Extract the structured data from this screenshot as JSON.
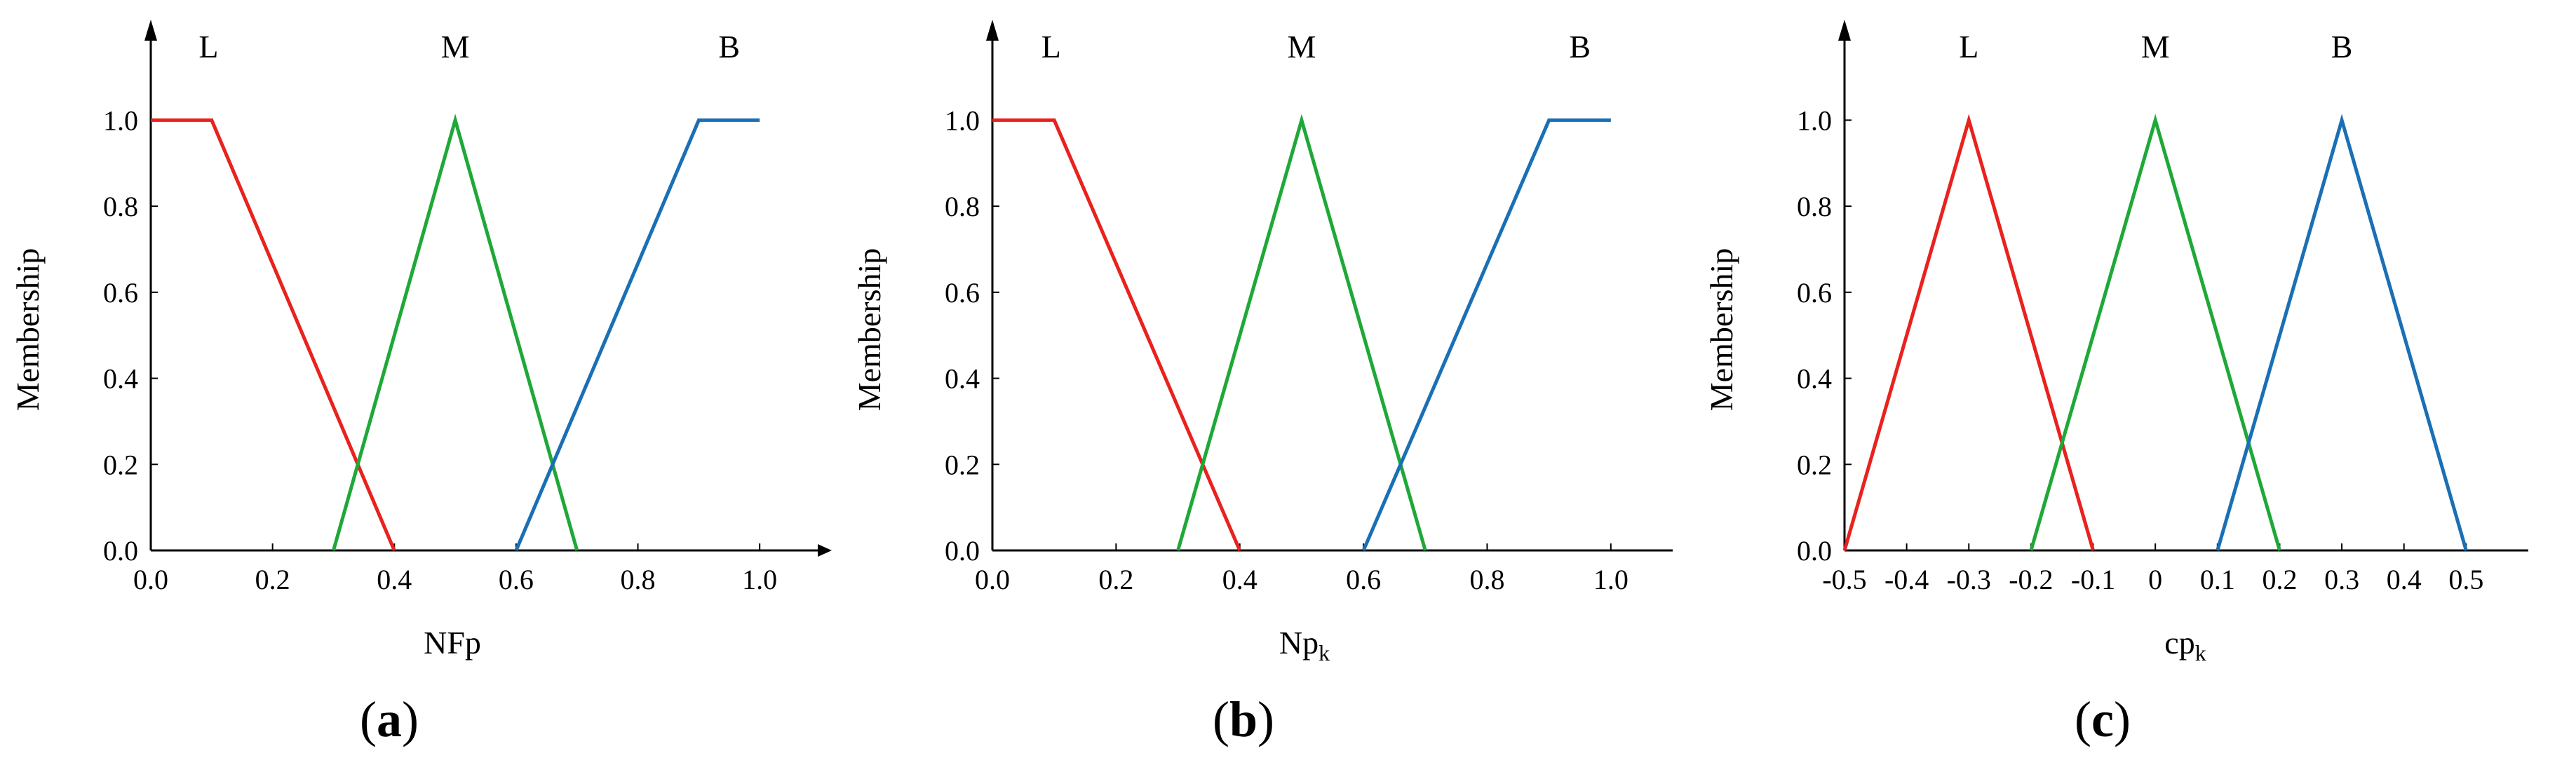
{
  "figure": {
    "panels": [
      {
        "label_open": "(",
        "label_letter": "a",
        "label_close": ")",
        "xlabel_main": "NFp",
        "xlabel_sub": "",
        "ylabel": "Membership",
        "sets": [
          "L",
          "M",
          "B"
        ]
      },
      {
        "label_open": "(",
        "label_letter": "b",
        "label_close": ")",
        "xlabel_main": "Np",
        "xlabel_sub": "k",
        "ylabel": "Membership",
        "sets": [
          "L",
          "M",
          "B"
        ]
      },
      {
        "label_open": "(",
        "label_letter": "c",
        "label_close": ")",
        "xlabel_main": "cp",
        "xlabel_sub": "k",
        "ylabel": "Membership",
        "sets": [
          "L",
          "M",
          "B"
        ]
      }
    ]
  },
  "chart_data": [
    {
      "type": "line",
      "xlabel": "NFp",
      "ylabel": "Membership",
      "xlim": [
        0,
        1.1
      ],
      "ylim": [
        0,
        1.1
      ],
      "x_ticks": [
        0.0,
        0.2,
        0.4,
        0.6,
        0.8,
        1.0
      ],
      "x_tick_labels": [
        "0.0",
        "0.2",
        "0.4",
        "0.6",
        "0.8",
        "1.0"
      ],
      "y_ticks": [
        0.0,
        0.2,
        0.4,
        0.6,
        0.8,
        1.0
      ],
      "y_tick_labels": [
        "0.0",
        "0.2",
        "0.4",
        "0.6",
        "0.8",
        "1.0"
      ],
      "grid": false,
      "series": [
        {
          "name": "L",
          "color": "#e8221e",
          "x": [
            0,
            0.1,
            0.4
          ],
          "y": [
            1,
            1,
            0
          ]
        },
        {
          "name": "M",
          "color": "#1fa838",
          "x": [
            0.3,
            0.5,
            0.7
          ],
          "y": [
            0,
            1,
            0
          ]
        },
        {
          "name": "B",
          "color": "#1a6fb5",
          "x": [
            0.6,
            0.9,
            1.0
          ],
          "y": [
            0,
            1,
            1
          ]
        }
      ]
    },
    {
      "type": "line",
      "xlabel": "Npk",
      "ylabel": "Membership",
      "xlim": [
        0,
        1.1
      ],
      "ylim": [
        0,
        1.1
      ],
      "x_ticks": [
        0.0,
        0.2,
        0.4,
        0.6,
        0.8,
        1.0
      ],
      "x_tick_labels": [
        "0.0",
        "0.2",
        "0.4",
        "0.6",
        "0.8",
        "1.0"
      ],
      "y_ticks": [
        0.0,
        0.2,
        0.4,
        0.6,
        0.8,
        1.0
      ],
      "y_tick_labels": [
        "0.0",
        "0.2",
        "0.4",
        "0.6",
        "0.8",
        "1.0"
      ],
      "grid": false,
      "series": [
        {
          "name": "L",
          "color": "#e8221e",
          "x": [
            0,
            0.1,
            0.4
          ],
          "y": [
            1,
            1,
            0
          ]
        },
        {
          "name": "M",
          "color": "#1fa838",
          "x": [
            0.3,
            0.5,
            0.7
          ],
          "y": [
            0,
            1,
            0
          ]
        },
        {
          "name": "B",
          "color": "#1a6fb5",
          "x": [
            0.6,
            0.9,
            1.0
          ],
          "y": [
            0,
            1,
            1
          ]
        }
      ]
    },
    {
      "type": "line",
      "xlabel": "cpk",
      "ylabel": "Membership",
      "xlim": [
        -0.5,
        0.6
      ],
      "ylim": [
        0,
        1.1
      ],
      "x_ticks": [
        -0.5,
        -0.4,
        -0.3,
        -0.2,
        -0.1,
        0,
        0.1,
        0.2,
        0.3,
        0.4,
        0.5
      ],
      "x_tick_labels": [
        "-0.5",
        "-0.4",
        "-0.3",
        "-0.2",
        "-0.1",
        "0",
        "0.1",
        "0.2",
        "0.3",
        "0.4",
        "0.5"
      ],
      "y_ticks": [
        0.0,
        0.2,
        0.4,
        0.6,
        0.8,
        1.0
      ],
      "y_tick_labels": [
        "0.0",
        "0.2",
        "0.4",
        "0.6",
        "0.8",
        "1.0"
      ],
      "grid": false,
      "series": [
        {
          "name": "L",
          "color": "#e8221e",
          "x": [
            -0.5,
            -0.3,
            -0.1
          ],
          "y": [
            0,
            1,
            0
          ]
        },
        {
          "name": "M",
          "color": "#1fa838",
          "x": [
            -0.2,
            0,
            0.2
          ],
          "y": [
            0,
            1,
            0
          ]
        },
        {
          "name": "B",
          "color": "#1a6fb5",
          "x": [
            0.1,
            0.3,
            0.5
          ],
          "y": [
            0,
            1,
            0
          ]
        }
      ]
    }
  ]
}
